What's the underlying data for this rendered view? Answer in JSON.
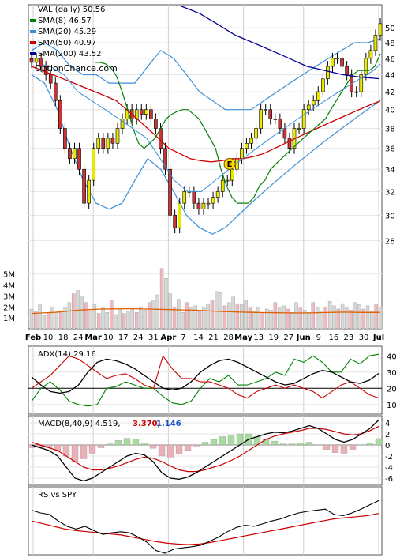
{
  "chart_data": {
    "type": "stock-technical",
    "price_panel": {
      "scale": "log",
      "ylim": [
        26.5,
        53
      ],
      "y_ticks": [
        28,
        30,
        32,
        34,
        36,
        38,
        40,
        42,
        44,
        46,
        48,
        50
      ],
      "legend": [
        {
          "label": "VAL (daily) 50.56",
          "color": "#000000",
          "symbol": "none"
        },
        {
          "label": "SMA(8) 46.57",
          "color": "#008000",
          "symbol": "swatch"
        },
        {
          "label": "SMA(20) 45.29",
          "color": "#3a8fd8",
          "symbol": "swatch"
        },
        {
          "label": "SMA(50) 40.97",
          "color": "#cc0000",
          "symbol": "swatch"
        },
        {
          "label": "SMA(200) 43.52",
          "color": "#000099",
          "symbol": "swatch"
        }
      ],
      "watermark": "OptionChance.com",
      "earnings_marker": {
        "label": "E",
        "x": 0.568,
        "y": 34.5
      },
      "close": [
        45.5,
        46,
        45,
        44,
        43,
        41,
        38,
        36,
        35,
        36,
        34,
        31,
        33,
        36,
        37,
        36,
        37,
        36.5,
        38,
        39,
        40,
        39,
        40,
        39.5,
        40,
        39,
        38,
        36,
        34,
        30,
        29,
        31,
        32,
        32,
        31,
        30.5,
        31,
        31,
        31.5,
        32,
        33,
        33,
        34,
        35,
        36,
        36.5,
        37,
        38,
        40,
        40,
        39,
        39,
        38,
        37,
        36,
        38,
        38,
        40,
        40.5,
        41,
        42,
        43.5,
        45,
        46,
        46,
        45,
        44,
        42,
        42,
        44,
        46,
        47,
        49,
        50.56
      ],
      "sma8": [
        45.5,
        45.5,
        45.3,
        44.8,
        43.8,
        42,
        40,
        38,
        36.5,
        36,
        36.5,
        37,
        38,
        39,
        39.5,
        39.8,
        40,
        40,
        39.5,
        39,
        38,
        37,
        36,
        34,
        32.5,
        31.5,
        31,
        31,
        31,
        31.5,
        32.5,
        33,
        34,
        34.5,
        35,
        35.5,
        36,
        36.5,
        37,
        37.5,
        38,
        38.5,
        39,
        40,
        41,
        42,
        43,
        44,
        44.5,
        44.5,
        44.5,
        45,
        46.57
      ],
      "sma20": [
        45.2,
        45,
        44.5,
        44,
        43,
        42,
        41.5,
        41,
        40.5,
        40,
        39.5,
        39,
        38.5,
        38,
        37.5,
        37,
        36,
        35,
        34,
        33,
        32.5,
        32,
        32,
        32,
        32.5,
        33,
        33.5,
        34,
        34.5,
        35,
        35.5,
        36,
        36.5,
        37,
        37.5,
        38,
        38.5,
        39,
        39.5,
        40,
        40.5,
        41,
        41.5,
        42,
        42.5,
        43,
        43.5,
        44,
        44.5,
        45.29
      ],
      "sma50": [
        45,
        44.5,
        44,
        43.5,
        43,
        42.5,
        42,
        41.5,
        41,
        40,
        39,
        38,
        37,
        36,
        35.5,
        35,
        34.8,
        34.7,
        34.8,
        35,
        35,
        35.2,
        35.5,
        36,
        36.5,
        37,
        37.5,
        38,
        38.5,
        39,
        39.5,
        40,
        40.5,
        40.97
      ],
      "sma200": [
        53,
        52,
        50.5,
        49,
        48,
        47,
        46,
        45,
        44.5,
        44,
        43.7,
        43.52
      ],
      "bollinger_upper": [
        47,
        48,
        47,
        45,
        44,
        44,
        43,
        43,
        43,
        45,
        47,
        46,
        44,
        42,
        41,
        40,
        40,
        40,
        41,
        42,
        43,
        44,
        45,
        46,
        47,
        48,
        48,
        48.5
      ],
      "bollinger_lower": [
        44,
        43,
        40,
        36,
        33,
        31,
        30.5,
        31,
        33,
        35,
        34,
        32,
        30,
        29,
        28.5,
        29,
        30,
        31,
        32,
        33,
        34,
        35,
        36,
        37,
        38,
        39,
        40,
        41
      ]
    },
    "volume_panel": {
      "ylim": [
        0,
        6.2
      ],
      "y_ticks": [
        "1M",
        "2M",
        "3M",
        "4M",
        "5M"
      ],
      "bars": [
        1.8,
        1.6,
        2.3,
        1.2,
        1.4,
        2.0,
        1.5,
        1.6,
        1.9,
        2.4,
        3.2,
        3.5,
        3.0,
        2.4,
        1.6,
        2.2,
        1.4,
        1.9,
        1.5,
        2.6,
        1.3,
        1.8,
        1.4,
        1.6,
        1.8,
        1.5,
        2.0,
        1.7,
        2.4,
        2.6,
        3.1,
        5.5,
        4.6,
        3.2,
        2.0,
        2.7,
        1.5,
        2.4,
        1.9,
        2.1,
        1.6,
        2.0,
        2.2,
        2.6,
        3.4,
        3.3,
        2.1,
        2.4,
        2.9,
        2.3,
        2.2,
        2.6,
        1.9,
        1.6,
        2.0,
        1.5,
        1.8,
        1.7,
        2.4,
        2.0,
        2.1,
        1.8,
        1.5,
        2.4,
        1.9,
        1.7,
        1.5,
        2.4,
        1.9,
        1.6,
        2.0,
        2.5,
        2.1,
        1.8,
        2.3,
        1.9,
        1.7,
        2.4,
        2.2,
        1.8,
        2.1,
        1.6,
        2.3,
        2.0
      ],
      "avg_line": [
        1.4,
        1.45,
        1.5,
        1.6,
        1.7,
        1.75,
        1.8,
        1.82,
        1.83,
        1.83,
        1.8,
        1.78,
        1.75,
        1.72,
        1.7,
        1.65,
        1.6,
        1.56,
        1.52,
        1.5,
        1.48,
        1.46,
        1.45,
        1.44,
        1.45,
        1.48,
        1.5,
        1.52,
        1.5,
        1.49,
        1.5
      ]
    },
    "x_axis": {
      "labels": [
        "Feb",
        "10",
        "18",
        "24",
        "Mar",
        "10",
        "17",
        "24",
        "31",
        "Apr",
        "7",
        "14",
        "21",
        "28",
        "May",
        "13",
        "19",
        "27",
        "Jun",
        "9",
        "16",
        "23",
        "30",
        "Jul"
      ],
      "bold_labels": [
        "Feb",
        "Mar",
        "Apr",
        "May",
        "Jun",
        "Jul"
      ]
    },
    "adx_panel": {
      "label": "ADX(14) 29.16",
      "ylim": [
        5,
        45
      ],
      "y_ticks": [
        10,
        20,
        30,
        40
      ],
      "adx": [
        27,
        22,
        18,
        17,
        18,
        22,
        30,
        36,
        38,
        37,
        35,
        32,
        28,
        24,
        20,
        19,
        20,
        24,
        30,
        34,
        37,
        38,
        36,
        33,
        30,
        27,
        24,
        22,
        23,
        26,
        29,
        31,
        30,
        27,
        24,
        23,
        25,
        29.16
      ],
      "plus_di": [
        12,
        20,
        24,
        19,
        12,
        10,
        9,
        10,
        20,
        21,
        24,
        22,
        20,
        20,
        15,
        11,
        10,
        12,
        20,
        26,
        24,
        28,
        22,
        22,
        24,
        26,
        30,
        28,
        38,
        36,
        40,
        36,
        30,
        30,
        38,
        35,
        40,
        41
      ],
      "minus_di": [
        20,
        24,
        28,
        34,
        40,
        38,
        34,
        30,
        26,
        28,
        29,
        26,
        22,
        20,
        40,
        32,
        26,
        26,
        24,
        24,
        22,
        20,
        16,
        14,
        18,
        20,
        22,
        20,
        22,
        20,
        18,
        14,
        18,
        22,
        24,
        20,
        16,
        14
      ]
    },
    "macd_panel": {
      "label": "MACD(8,40,9) 4.519,",
      "signal_label": "3.370,",
      "hist_label": "1.146",
      "ylim": [
        -7,
        5
      ],
      "y_ticks": [
        -6,
        -4,
        -2,
        0,
        2,
        4
      ],
      "macd": [
        0,
        -0.5,
        -1,
        -2,
        -4,
        -6,
        -6.5,
        -6,
        -5,
        -4,
        -3,
        -2,
        -1.5,
        -1.8,
        -3,
        -5,
        -6,
        -6.2,
        -5.8,
        -5,
        -4,
        -3,
        -2,
        -1,
        0,
        1,
        1.5,
        2,
        2.3,
        2.2,
        2.5,
        3,
        3.5,
        3,
        2,
        1,
        0.5,
        1,
        2,
        3,
        4.519
      ],
      "signal": [
        0.5,
        0,
        -0.5,
        -1,
        -2,
        -3,
        -4,
        -4.5,
        -4.5,
        -4.2,
        -3.8,
        -3.2,
        -2.6,
        -2.2,
        -2.4,
        -3,
        -3.8,
        -4.5,
        -4.8,
        -4.8,
        -4.5,
        -4,
        -3.5,
        -2.8,
        -2,
        -1,
        0,
        1,
        1.6,
        2,
        2.3,
        2.6,
        3,
        3,
        2.8,
        2.4,
        2,
        1.8,
        2,
        2.6,
        3.37
      ],
      "histogram": [
        -0.5,
        -0.5,
        -0.5,
        -1,
        -2,
        -3,
        -2.5,
        -1.5,
        -0.5,
        0.2,
        0.8,
        1.2,
        1.1,
        0.4,
        -0.6,
        -2,
        -2.2,
        -1.7,
        -1,
        -0.2,
        0.5,
        1,
        1.5,
        1.8,
        2,
        2,
        1.5,
        1,
        0.7,
        0.2,
        0.2,
        0.4,
        0.5,
        0,
        -0.8,
        -1.4,
        -1.5,
        -0.8,
        0,
        0.4,
        1.146
      ]
    },
    "rs_panel": {
      "label": "RS vs SPY",
      "rs": [
        0.8,
        0.75,
        0.72,
        0.6,
        0.5,
        0.45,
        0.5,
        0.42,
        0.35,
        0.38,
        0.4,
        0.38,
        0.3,
        0.2,
        0.05,
        0.0,
        0.08,
        0.1,
        0.12,
        0.15,
        0.22,
        0.3,
        0.4,
        0.48,
        0.52,
        0.5,
        0.55,
        0.6,
        0.64,
        0.7,
        0.75,
        0.78,
        0.8,
        0.82,
        0.72,
        0.7,
        0.75,
        0.82,
        0.9,
        0.98
      ],
      "rs_sma": [
        0.6,
        0.55,
        0.5,
        0.45,
        0.42,
        0.4,
        0.38,
        0.36,
        0.34,
        0.3,
        0.26,
        0.22,
        0.19,
        0.17,
        0.16,
        0.17,
        0.2,
        0.24,
        0.28,
        0.32,
        0.36,
        0.4,
        0.44,
        0.48,
        0.52,
        0.56,
        0.6,
        0.64,
        0.66,
        0.68,
        0.7,
        0.74
      ]
    }
  },
  "colors": {
    "sma8": "#008000",
    "sma20": "#3a8fd8",
    "sma50": "#cc0000",
    "sma200": "#000099",
    "up_candle": "#e8e800",
    "down_candle": "#cc3333",
    "volume_up": "#d8d8d8",
    "volume_down": "#f2b8c0",
    "volume_avg": "#e06000",
    "macd_signal": "#cc0000",
    "macd_hist_up": "#a8dba0",
    "macd_hist_down": "#eab0b8",
    "signal_label_color": "#cc0000",
    "hist_label_color": "#1a4fc0"
  }
}
